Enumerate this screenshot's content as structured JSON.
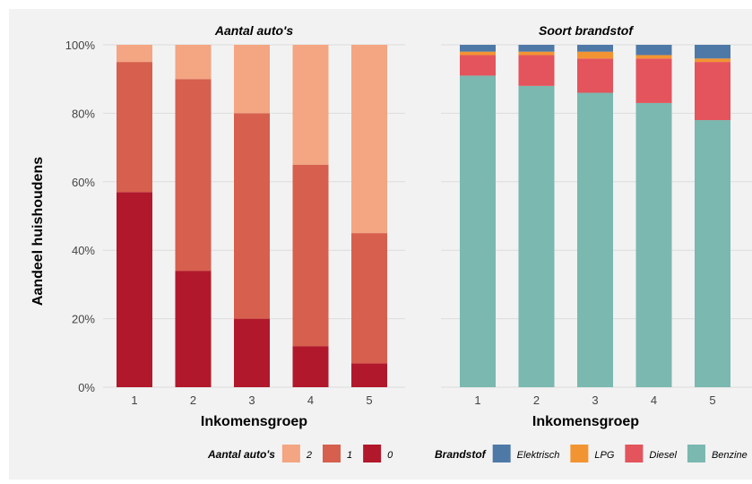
{
  "y_axis": {
    "label": "Aandeel huishoudens",
    "ticks": [
      "0%",
      "20%",
      "40%",
      "60%",
      "80%",
      "100%"
    ],
    "tick_values": [
      0,
      20,
      40,
      60,
      80,
      100
    ]
  },
  "chart_data": [
    {
      "type": "bar",
      "stacked": true,
      "title": "Aantal auto's",
      "xlabel": "Inkomensgroep",
      "ylabel": "Aandeel huishoudens",
      "ylim": [
        0,
        100
      ],
      "categories": [
        "1",
        "2",
        "3",
        "4",
        "5"
      ],
      "series": [
        {
          "name": "0",
          "color": "#b2182b",
          "values": [
            57,
            34,
            20,
            12,
            7
          ]
        },
        {
          "name": "1",
          "color": "#d6604d",
          "values": [
            38,
            56,
            60,
            53,
            38
          ]
        },
        {
          "name": "2",
          "color": "#f4a582",
          "values": [
            5,
            10,
            20,
            35,
            55
          ]
        }
      ],
      "legend": {
        "title": "Aantal auto's",
        "order": [
          "2",
          "1",
          "0"
        ],
        "placement": "bottom"
      },
      "grid": true
    },
    {
      "type": "bar",
      "stacked": true,
      "title": "Soort brandstof",
      "xlabel": "Inkomensgroep",
      "ylabel": "",
      "ylim": [
        0,
        100
      ],
      "categories": [
        "1",
        "2",
        "3",
        "4",
        "5"
      ],
      "series": [
        {
          "name": "Benzine",
          "color": "#7ab8b0",
          "values": [
            91,
            88,
            86,
            83,
            78
          ]
        },
        {
          "name": "Diesel",
          "color": "#e3545c",
          "values": [
            6,
            9,
            10,
            13,
            17
          ]
        },
        {
          "name": "LPG",
          "color": "#f39432",
          "values": [
            1,
            1,
            2,
            1,
            1
          ]
        },
        {
          "name": "Elektrisch",
          "color": "#4e79a7",
          "values": [
            2,
            2,
            2,
            3,
            4
          ]
        }
      ],
      "legend": {
        "title": "Brandstof",
        "order": [
          "Elektrisch",
          "LPG",
          "Diesel",
          "Benzine"
        ],
        "placement": "bottom"
      },
      "grid": true
    }
  ]
}
